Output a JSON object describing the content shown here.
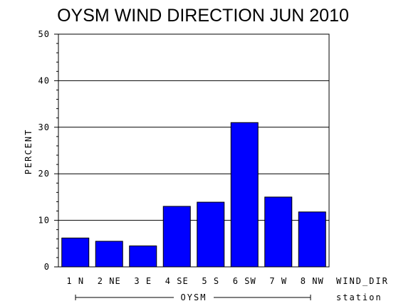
{
  "chart_data": {
    "type": "bar",
    "title": "OYSM WIND DIRECTION JUN 2010",
    "ylabel": "PERCENT",
    "xlabel": "WIND_DIR",
    "group_axis_label": "station",
    "group_name": "OYSM",
    "categories": [
      "1 N",
      "2 NE",
      "3 E",
      "4 SE",
      "5 S",
      "6 SW",
      "7 W",
      "8 NW"
    ],
    "values": [
      6.2,
      5.5,
      4.5,
      13.0,
      13.9,
      31.0,
      15.0,
      11.8
    ],
    "ylim": [
      0,
      50
    ],
    "yticks": [
      0,
      10,
      20,
      30,
      40,
      50
    ],
    "grid": true,
    "bar_color": "#0000ff"
  }
}
